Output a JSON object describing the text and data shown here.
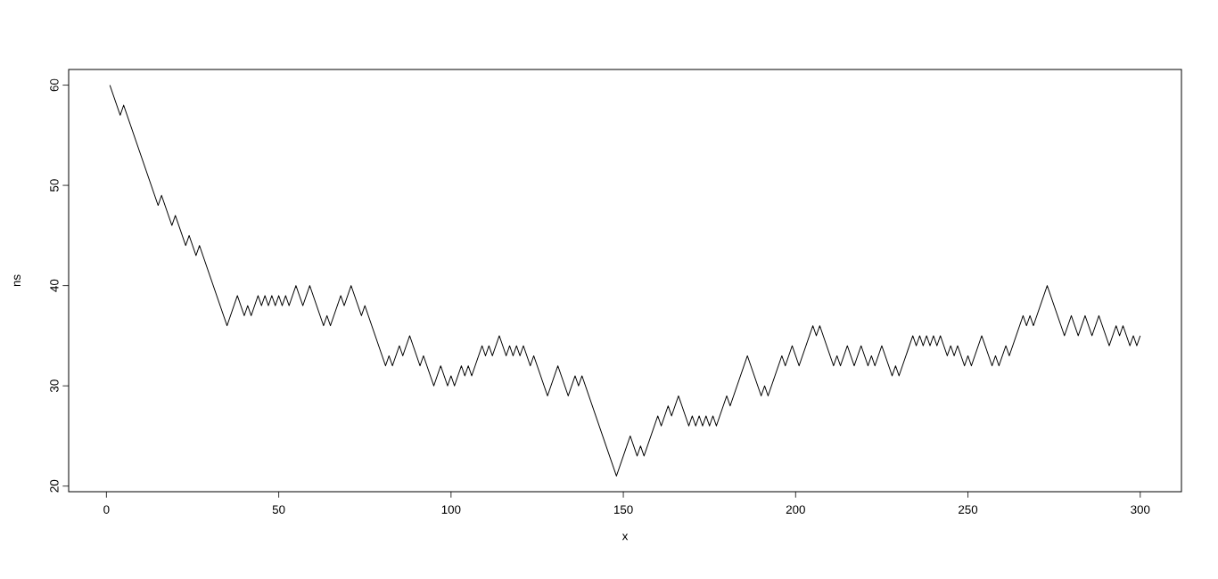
{
  "chart_data": {
    "type": "line",
    "xlabel": "x",
    "ylabel": "ns",
    "x": [
      1,
      4,
      5,
      15,
      16,
      19,
      20,
      23,
      24,
      26,
      27,
      35,
      38,
      40,
      41,
      42,
      44,
      45,
      46,
      47,
      48,
      49,
      50,
      51,
      52,
      53,
      55,
      57,
      59,
      63,
      64,
      65,
      68,
      69,
      71,
      74,
      75,
      81,
      82,
      83,
      85,
      86,
      88,
      91,
      92,
      95,
      97,
      99,
      100,
      101,
      103,
      104,
      105,
      106,
      109,
      110,
      111,
      112,
      114,
      116,
      117,
      118,
      119,
      120,
      121,
      123,
      124,
      128,
      131,
      134,
      136,
      137,
      138,
      148,
      152,
      154,
      155,
      156,
      160,
      161,
      163,
      164,
      166,
      169,
      170,
      171,
      172,
      173,
      174,
      175,
      176,
      177,
      180,
      181,
      186,
      190,
      191,
      192,
      196,
      197,
      199,
      201,
      205,
      206,
      207,
      211,
      212,
      213,
      215,
      217,
      219,
      221,
      222,
      223,
      225,
      228,
      229,
      230,
      234,
      235,
      236,
      237,
      238,
      239,
      240,
      241,
      242,
      244,
      245,
      246,
      247,
      249,
      250,
      251,
      254,
      257,
      258,
      259,
      261,
      262,
      266,
      267,
      268,
      269,
      273,
      278,
      280,
      282,
      284,
      286,
      288,
      291,
      293,
      294,
      295,
      297,
      298,
      299,
      300
    ],
    "series": [
      {
        "color": "#000000",
        "values": [
          60,
          57,
          58,
          48,
          49,
          46,
          47,
          44,
          45,
          43,
          44,
          36,
          39,
          37,
          38,
          37,
          39,
          38,
          39,
          38,
          39,
          38,
          39,
          38,
          39,
          38,
          40,
          38,
          40,
          36,
          37,
          36,
          39,
          38,
          40,
          37,
          38,
          32,
          33,
          32,
          34,
          33,
          35,
          32,
          33,
          30,
          32,
          30,
          31,
          30,
          32,
          31,
          32,
          31,
          34,
          33,
          34,
          33,
          35,
          33,
          34,
          33,
          34,
          33,
          34,
          32,
          33,
          29,
          32,
          29,
          31,
          30,
          31,
          21,
          25,
          23,
          24,
          23,
          27,
          26,
          28,
          27,
          29,
          26,
          27,
          26,
          27,
          26,
          27,
          26,
          27,
          26,
          29,
          28,
          33,
          29,
          30,
          29,
          33,
          32,
          34,
          32,
          36,
          35,
          36,
          32,
          33,
          32,
          34,
          32,
          34,
          32,
          33,
          32,
          34,
          31,
          32,
          31,
          35,
          34,
          35,
          34,
          35,
          34,
          35,
          34,
          35,
          33,
          34,
          33,
          34,
          32,
          33,
          32,
          35,
          32,
          33,
          32,
          34,
          33,
          37,
          36,
          37,
          36,
          40,
          35,
          37,
          35,
          37,
          35,
          37,
          34,
          36,
          35,
          36,
          34,
          35,
          34,
          35
        ]
      }
    ],
    "xlim": [
      -10.96,
      311.96
    ],
    "ylim": [
      19.44,
      61.56
    ],
    "xticks": [
      0,
      50,
      100,
      150,
      200,
      250,
      300
    ],
    "yticks": [
      20,
      30,
      40,
      50,
      60
    ]
  }
}
